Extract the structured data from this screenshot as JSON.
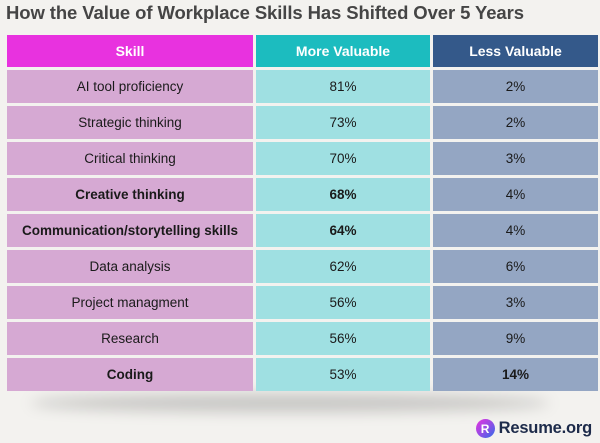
{
  "chart_data": {
    "type": "table",
    "title": "How the Value of Workplace Skills Has Shifted Over 5 Years",
    "columns": [
      "Skill",
      "More Valuable",
      "Less Valuable"
    ],
    "rows": [
      {
        "skill": "AI tool proficiency",
        "more": "81%",
        "less": "2%",
        "bold": []
      },
      {
        "skill": "Strategic thinking",
        "more": "73%",
        "less": "2%",
        "bold": []
      },
      {
        "skill": "Critical thinking",
        "more": "70%",
        "less": "3%",
        "bold": []
      },
      {
        "skill": "Creative thinking",
        "more": "68%",
        "less": "4%",
        "bold": [
          "skill",
          "more"
        ]
      },
      {
        "skill": "Communication/storytelling skills",
        "more": "64%",
        "less": "4%",
        "bold": [
          "skill",
          "more"
        ]
      },
      {
        "skill": "Data analysis",
        "more": "62%",
        "less": "6%",
        "bold": []
      },
      {
        "skill": "Project managment",
        "more": "56%",
        "less": "3%",
        "bold": []
      },
      {
        "skill": "Research",
        "more": "56%",
        "less": "9%",
        "bold": []
      },
      {
        "skill": "Coding",
        "more": "53%",
        "less": "14%",
        "bold": [
          "skill",
          "less"
        ]
      }
    ],
    "colors": {
      "skill_header": "#e832df",
      "more_header": "#1cbcbf",
      "less_header": "#34598a",
      "skill_cell": "#d6a9d3",
      "more_cell": "#9fe0e2",
      "less_cell": "#94a6c3"
    }
  },
  "branding": {
    "logo_letter": "R",
    "logo_text": "Resume.org"
  }
}
